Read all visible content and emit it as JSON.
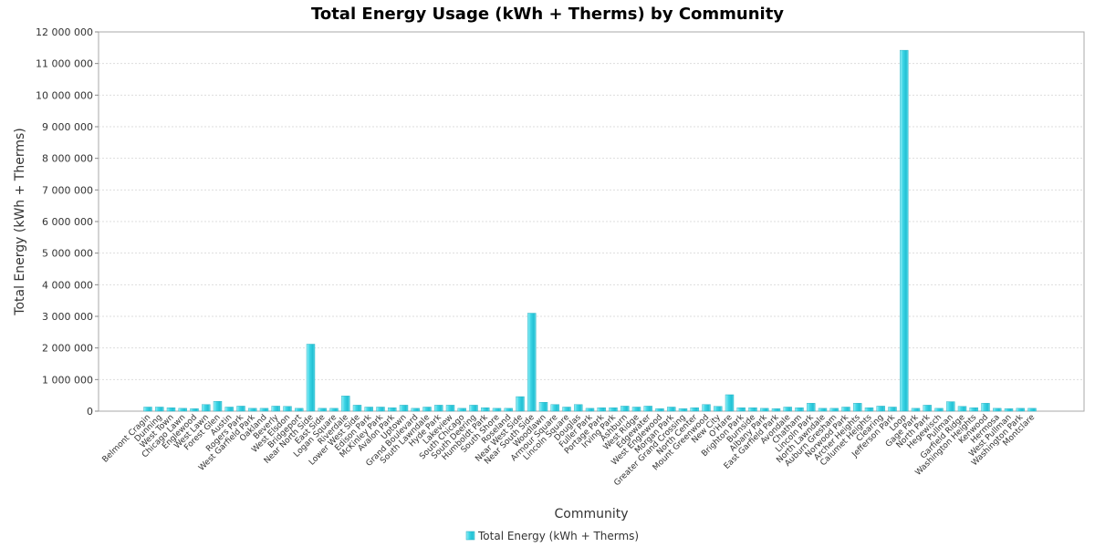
{
  "chart_data": {
    "type": "bar",
    "title": "Total Energy Usage (kWh + Therms) by Community",
    "xlabel": "Community",
    "ylabel": "Total Energy (kWh + Therms)",
    "ylim": [
      0,
      12000000
    ],
    "yticks": [
      0,
      1000000,
      2000000,
      3000000,
      4000000,
      5000000,
      6000000,
      7000000,
      8000000,
      9000000,
      10000000,
      11000000,
      12000000
    ],
    "grid": true,
    "legend_position": "bottom",
    "series": [
      {
        "name": "Total Energy (kWh + Therms)",
        "color": "#33ccdd",
        "values": [
          130000,
          130000,
          110000,
          90000,
          80000,
          210000,
          310000,
          130000,
          160000,
          90000,
          90000,
          160000,
          150000,
          90000,
          2120000,
          90000,
          90000,
          480000,
          190000,
          130000,
          130000,
          110000,
          190000,
          90000,
          130000,
          190000,
          190000,
          90000,
          190000,
          110000,
          90000,
          90000,
          460000,
          3100000,
          280000,
          210000,
          130000,
          210000,
          90000,
          110000,
          110000,
          160000,
          130000,
          160000,
          80000,
          130000,
          80000,
          110000,
          210000,
          150000,
          520000,
          110000,
          110000,
          90000,
          80000,
          130000,
          110000,
          250000,
          90000,
          90000,
          130000,
          250000,
          110000,
          160000,
          130000,
          11420000,
          90000,
          190000,
          90000,
          300000,
          150000,
          110000,
          250000,
          90000,
          80000,
          90000,
          90000
        ]
      }
    ],
    "categories": [
      "Belmont Cragin",
      "Dunning",
      "West Town",
      "Chicago Lawn",
      "Englewood",
      "West Lawn",
      "Forest Glen",
      "Austin",
      "Rogers Park",
      "West Garfield Park",
      "Oakland",
      "Beverly",
      "West Elsdon",
      "Bridgeport",
      "Near North Side",
      "East Side",
      "Logan Square",
      "Riverdale",
      "Lower West Side",
      "Edison Park",
      "McKinley Park",
      "Avalon Park",
      "Uptown",
      "Grand Boulevard",
      "South Lawndale",
      "Hyde Park",
      "Lakeview",
      "South Chicago",
      "South Deering",
      "Humboldt Park",
      "South Shore",
      "Roseland",
      "Near West Side",
      "Near South Side",
      "Woodlawn",
      "Armour Square",
      "Lincoln Square",
      "Douglas",
      "Fuller Park",
      "Portage Park",
      "Irving Park",
      "Ashburn",
      "West Ridge",
      "Edgewater",
      "West Englewood",
      "Morgan Park",
      "Greater Grand Crossing",
      "North Center",
      "Mount Greenwood",
      "New City",
      "O'Hare",
      "Brighton Park",
      "Burnside",
      "Albany Park",
      "East Garfield Park",
      "Avondale",
      "Chatham",
      "Lincoln Park",
      "North Lawndale",
      "Auburn Gresham",
      "Norwood Park",
      "Archer Heights",
      "Calumet Heights",
      "Clearing",
      "Jefferson Park",
      "Loop",
      "Gage Park",
      "North Park",
      "Hegewisch",
      "Pullman",
      "Garfield Ridge",
      "Washington Heights",
      "Kenwood",
      "Hermosa",
      "West Pullman",
      "Washington Park",
      "Montclare"
    ]
  }
}
